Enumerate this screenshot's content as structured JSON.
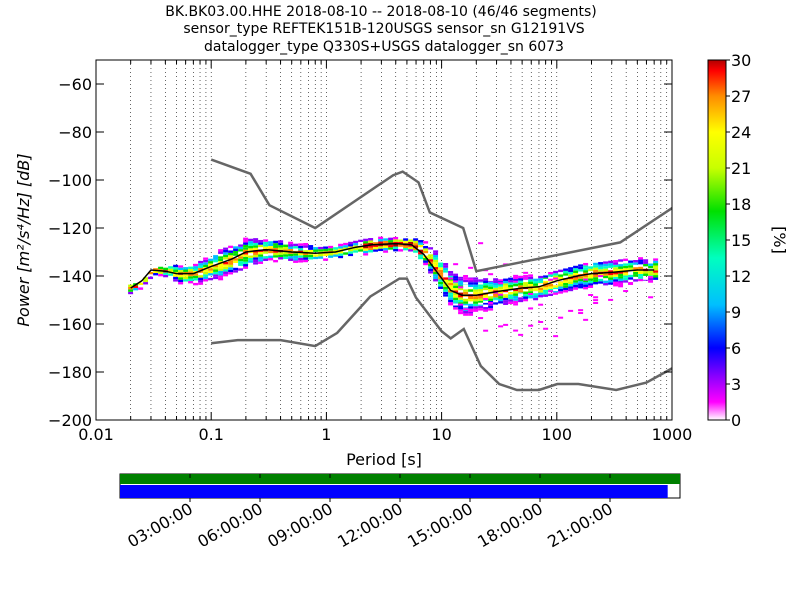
{
  "title": {
    "line1": "BK.BK03.00.HHE   2018-08-10 -- 2018-08-10  (46/46 segments)",
    "line2": "sensor_type REFTEK151B-120USGS sensor_sn G12191VS",
    "line3": "datalogger_type Q330S+USGS datalogger_sn 6073"
  },
  "chart_data": {
    "type": "heatmap",
    "xlabel": "Period [s]",
    "ylabel": "Power [m²/s⁴/Hz] [dB]",
    "x_scale": "log",
    "xlim": [
      0.01,
      1000
    ],
    "ylim": [
      -200,
      -50
    ],
    "xticks": [
      0.01,
      0.1,
      1,
      10,
      100,
      1000
    ],
    "xtick_labels": [
      "0.01",
      "0.1",
      "1",
      "10",
      "100",
      "1000"
    ],
    "yticks": [
      -200,
      -180,
      -160,
      -140,
      -120,
      -100,
      -80,
      -60
    ],
    "grid": true,
    "colorbar": {
      "label": "[%]",
      "range": [
        0,
        30
      ],
      "ticks": [
        0,
        3,
        6,
        9,
        12,
        15,
        18,
        21,
        24,
        27,
        30
      ],
      "colormap": [
        "#ffffff",
        "#ff00ff",
        "#8c00ff",
        "#0000ff",
        "#00bfff",
        "#00ffbf",
        "#00e000",
        "#c8ff00",
        "#ffff00",
        "#ff8c00",
        "#ff0000",
        "#b00000"
      ]
    },
    "noise_models": [
      {
        "name": "NHNM",
        "color": "#666666",
        "points": [
          [
            0.1,
            -91.5
          ],
          [
            0.22,
            -97.4
          ],
          [
            0.32,
            -110.5
          ],
          [
            0.8,
            -120
          ],
          [
            3.8,
            -98
          ],
          [
            4.6,
            -96.5
          ],
          [
            6.3,
            -101
          ],
          [
            7.9,
            -113.5
          ],
          [
            15.4,
            -120
          ],
          [
            20,
            -138
          ],
          [
            354.8,
            -126
          ],
          [
            10000,
            -80
          ]
        ]
      },
      {
        "name": "NLNM",
        "color": "#666666",
        "points": [
          [
            0.1,
            -168
          ],
          [
            0.17,
            -166.7
          ],
          [
            0.4,
            -166.7
          ],
          [
            0.8,
            -169.2
          ],
          [
            1.24,
            -163.7
          ],
          [
            2.4,
            -148.6
          ],
          [
            4.3,
            -141.1
          ],
          [
            5,
            -141.1
          ],
          [
            6,
            -149
          ],
          [
            10,
            -163
          ],
          [
            12,
            -166
          ],
          [
            15.6,
            -162.1
          ],
          [
            21.9,
            -177.5
          ],
          [
            31.6,
            -185
          ],
          [
            45,
            -187.5
          ],
          [
            70,
            -187.5
          ],
          [
            101,
            -185
          ],
          [
            154,
            -185
          ],
          [
            328,
            -187.5
          ],
          [
            600,
            -184.4
          ],
          [
            1000,
            -178.5
          ]
        ]
      }
    ],
    "median": {
      "color": "#000000",
      "points": [
        [
          0.02,
          -145
        ],
        [
          0.025,
          -142
        ],
        [
          0.03,
          -137.5
        ],
        [
          0.04,
          -138
        ],
        [
          0.05,
          -139
        ],
        [
          0.07,
          -139
        ],
        [
          0.1,
          -136
        ],
        [
          0.15,
          -133
        ],
        [
          0.2,
          -130
        ],
        [
          0.3,
          -129
        ],
        [
          0.5,
          -130
        ],
        [
          0.8,
          -130.5
        ],
        [
          1.2,
          -130
        ],
        [
          1.8,
          -128
        ],
        [
          2.5,
          -127
        ],
        [
          4,
          -126.5
        ],
        [
          5.5,
          -127
        ],
        [
          7,
          -131
        ],
        [
          9,
          -138
        ],
        [
          12,
          -146
        ],
        [
          15,
          -148
        ],
        [
          20,
          -148
        ],
        [
          30,
          -146.5
        ],
        [
          50,
          -145
        ],
        [
          70,
          -144.5
        ],
        [
          100,
          -142
        ],
        [
          150,
          -140
        ],
        [
          200,
          -139
        ],
        [
          300,
          -138.5
        ],
        [
          500,
          -137.5
        ],
        [
          700,
          -137.5
        ]
      ]
    },
    "spread_envelope": {
      "points": [
        [
          0.02,
          -145,
          -146
        ],
        [
          0.03,
          -138,
          -141
        ],
        [
          0.05,
          -136,
          -143
        ],
        [
          0.08,
          -133,
          -142
        ],
        [
          0.12,
          -129,
          -140
        ],
        [
          0.2,
          -125,
          -136
        ],
        [
          0.3,
          -126,
          -135
        ],
        [
          0.5,
          -127,
          -134
        ],
        [
          1,
          -128,
          -133
        ],
        [
          2,
          -125,
          -130
        ],
        [
          4,
          -125,
          -128
        ],
        [
          6,
          -125,
          -130
        ],
        [
          8,
          -128,
          -140
        ],
        [
          10,
          -133,
          -147
        ],
        [
          12,
          -140,
          -153
        ],
        [
          15,
          -140,
          -155
        ],
        [
          20,
          -142,
          -155
        ],
        [
          30,
          -142,
          -153
        ],
        [
          50,
          -141,
          -151
        ],
        [
          80,
          -140,
          -150
        ],
        [
          120,
          -138,
          -148
        ],
        [
          200,
          -135,
          -145
        ],
        [
          400,
          -134,
          -143
        ],
        [
          700,
          -133,
          -142
        ]
      ]
    },
    "sparse_envelope": {
      "points": [
        [
          11,
          -125,
          -155
        ],
        [
          14,
          -124,
          -158
        ],
        [
          20,
          -124,
          -165
        ],
        [
          30,
          -130,
          -162
        ],
        [
          50,
          -138,
          -165
        ],
        [
          80,
          -140,
          -167
        ],
        [
          120,
          -142,
          -165
        ],
        [
          200,
          -140,
          -155
        ],
        [
          400,
          -140,
          -152
        ],
        [
          700,
          -140,
          -148
        ]
      ]
    },
    "coverage": {
      "tick_labels": [
        "03:00:00",
        "06:00:00",
        "09:00:00",
        "12:00:00",
        "15:00:00",
        "18:00:00",
        "21:00:00"
      ],
      "data_color": "#008000",
      "psd_color": "#0000ff",
      "data_fraction": 1.0,
      "psd_fraction": 0.978
    }
  }
}
